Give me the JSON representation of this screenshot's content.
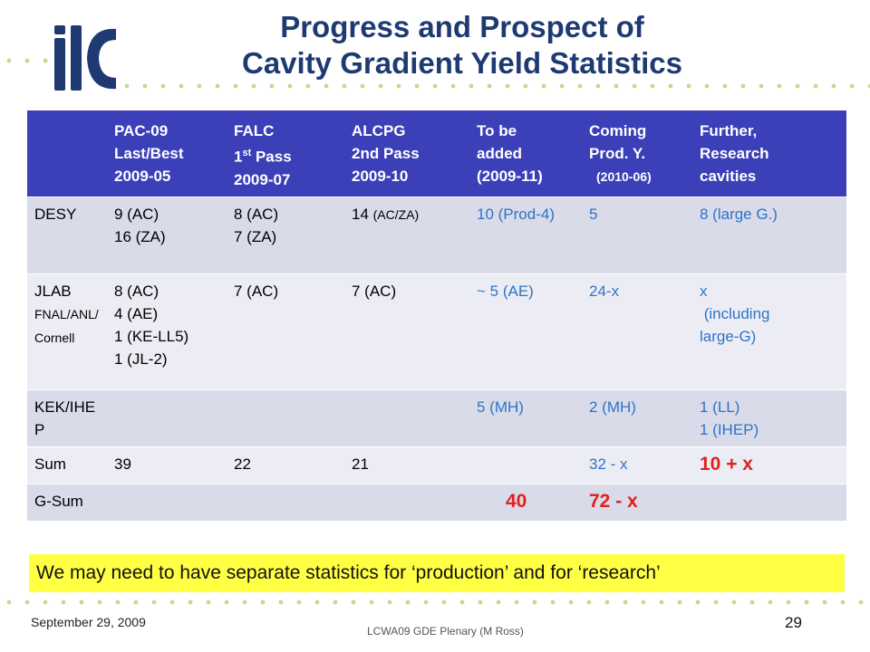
{
  "title": {
    "line1": "Progress and Prospect of",
    "line2": "Cavity Gradient Yield Statistics"
  },
  "logo": {
    "text": "ilc",
    "icon": "ilc-logo"
  },
  "colors": {
    "header_bg": "#3b3fb8",
    "title": "#1f3a73",
    "highlight_red": "#e02020",
    "blue_text": "#2e73c9",
    "note_bg": "#ffff44"
  },
  "table": {
    "headers": [
      {
        "lines": [
          "",
          "",
          ""
        ]
      },
      {
        "lines": [
          "PAC-09",
          "Last/Best",
          "2009-05"
        ]
      },
      {
        "l1": "FALC",
        "l2a": "1",
        "l2sup": "st",
        "l2b": " Pass",
        "l3": "2009-07"
      },
      {
        "lines": [
          "ALCPG",
          "2nd Pass",
          "2009-10"
        ]
      },
      {
        "lines": [
          "To be",
          "added",
          "(2009-11)"
        ]
      },
      {
        "lines": [
          "Coming",
          "Prod. Y.",
          "(2010-06)"
        ]
      },
      {
        "lines": [
          "Further,",
          "Research",
          "cavities"
        ]
      }
    ],
    "rows": [
      {
        "label": "DESY",
        "pac": [
          "9 (AC)",
          "16 (ZA)"
        ],
        "falc": [
          "8 (AC)",
          "7 (ZA)"
        ],
        "alcpg_num": "14 ",
        "alcpg_small": "(AC/ZA)",
        "tobe": "10 (Prod-4)",
        "coming": "5",
        "further": "8 (large G.)"
      },
      {
        "label": "JLAB",
        "label_small": "FNAL/ANL/Cornell",
        "pac": [
          "8 (AC)",
          "4 (AE)",
          "1 (KE-LL5)",
          "1 (JL-2)"
        ],
        "falc": "7 (AC)",
        "alcpg": "7 (AC)",
        "tobe": "~ 5 (AE)",
        "coming": "24-x",
        "further": [
          "x",
          " (including",
          "large-G)"
        ]
      },
      {
        "label": "KEK/IHEP",
        "tobe": "5 (MH)",
        "coming": "2 (MH)",
        "further": [
          "1 (LL)",
          "1 (IHEP)"
        ]
      },
      {
        "label": "Sum",
        "pac": "39",
        "falc": "22",
        "alcpg": "21",
        "coming": "32 - x",
        "further": "10 + x"
      },
      {
        "label": "G-Sum",
        "tobe": "40",
        "coming": "72 - x"
      }
    ]
  },
  "note": "We may need to have separate statistics for ‘production’ and for ‘research’",
  "footer": {
    "date": "September 29, 2009",
    "center": "LCWA09 GDE Plenary (M Ross)",
    "page": "29"
  }
}
